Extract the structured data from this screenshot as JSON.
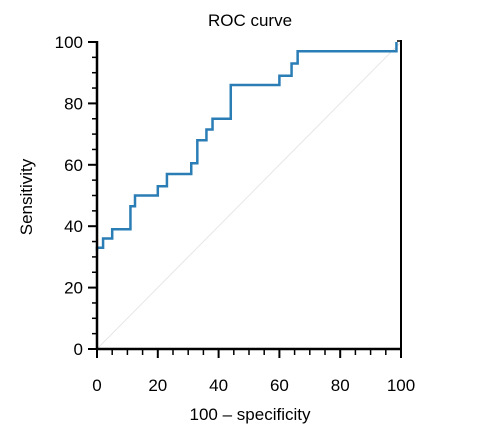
{
  "chart_data": {
    "type": "line",
    "title": "ROC curve",
    "xlabel": "100 – specificity",
    "ylabel": "Sensitivity",
    "xlim": [
      0,
      100
    ],
    "ylim": [
      0,
      100
    ],
    "x_ticks": [
      "0",
      "20",
      "40",
      "60",
      "80",
      "100"
    ],
    "y_ticks": [
      "0",
      "20",
      "40",
      "60",
      "80",
      "100"
    ],
    "grid": false,
    "legend": "none",
    "colors": {
      "roc": "#2a7db5",
      "reference": "#e6e6e6",
      "axis": "#000000"
    },
    "reference_line": [
      [
        0,
        0
      ],
      [
        100,
        100
      ]
    ],
    "series": [
      {
        "points": [
          [
            0,
            32
          ],
          [
            0,
            33
          ],
          [
            2,
            33
          ],
          [
            2,
            36
          ],
          [
            5,
            36
          ],
          [
            5,
            39
          ],
          [
            11,
            39
          ],
          [
            11,
            46.5
          ],
          [
            12.5,
            46.5
          ],
          [
            12.5,
            50
          ],
          [
            20,
            50
          ],
          [
            20,
            53
          ],
          [
            23,
            53
          ],
          [
            23,
            57
          ],
          [
            31,
            57
          ],
          [
            31,
            60.5
          ],
          [
            33,
            60.5
          ],
          [
            33,
            68
          ],
          [
            36,
            68
          ],
          [
            36,
            71.5
          ],
          [
            38,
            71.5
          ],
          [
            38,
            75
          ],
          [
            44,
            75
          ],
          [
            44,
            86
          ],
          [
            60,
            86
          ],
          [
            60,
            89
          ],
          [
            64,
            89
          ],
          [
            64,
            93
          ],
          [
            66,
            93
          ],
          [
            66,
            97
          ],
          [
            98.5,
            97
          ],
          [
            98.5,
            100
          ]
        ]
      }
    ]
  }
}
